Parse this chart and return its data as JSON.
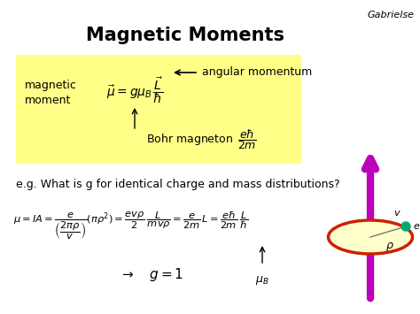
{
  "title": "Magnetic Moments",
  "author": "Gabrielse",
  "background_color": "#ffffff",
  "yellow_box_color": "#ffff88",
  "text_color": "#000000",
  "arrow_color": "#bb00bb",
  "orbit_color": "#cc2200",
  "orbit_fill": "#ffffcc",
  "electron_color": "#00aa77"
}
